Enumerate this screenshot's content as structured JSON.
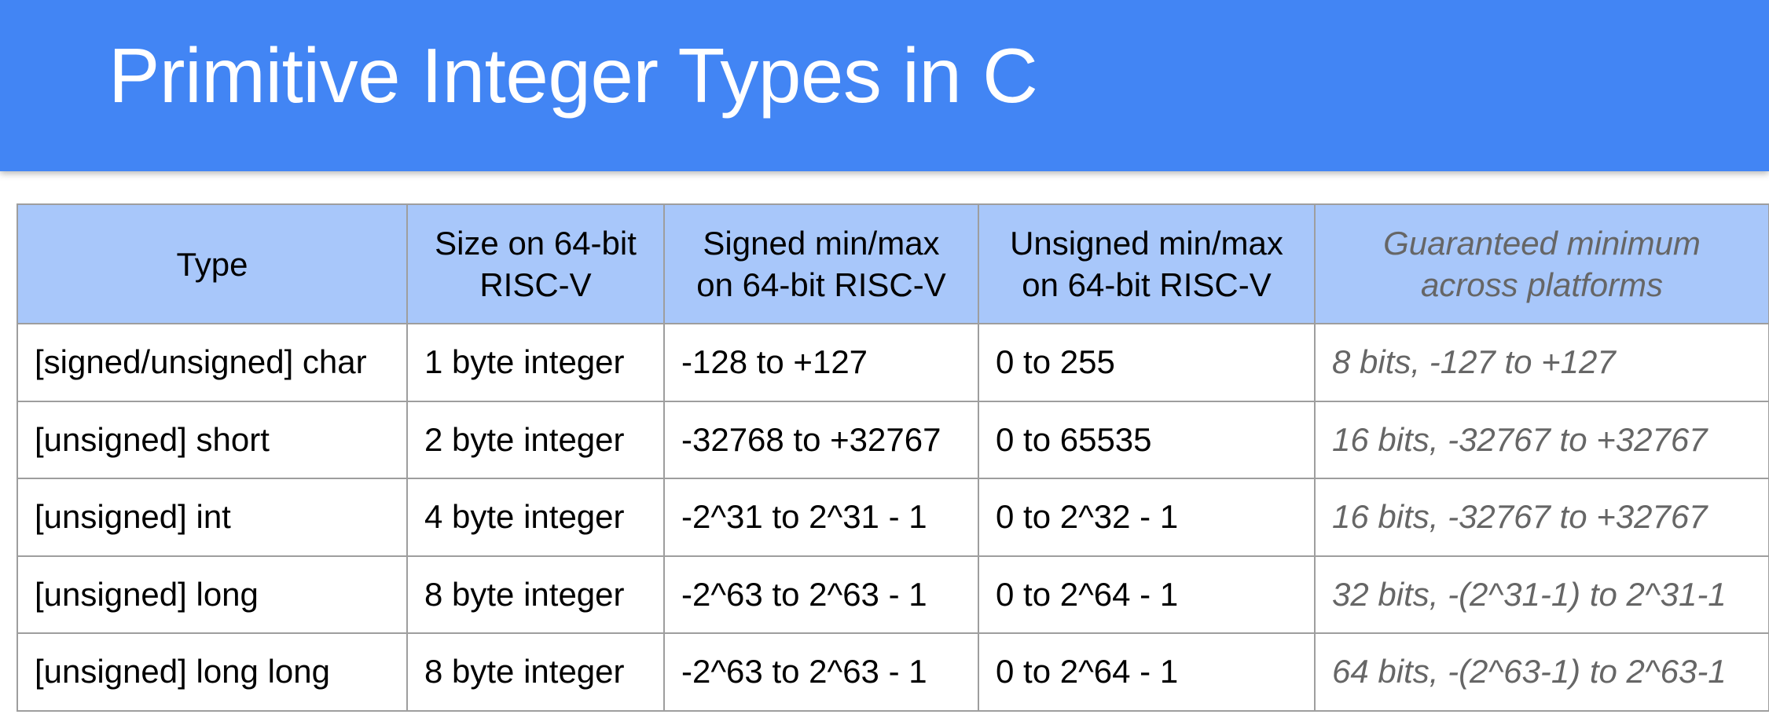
{
  "slide": {
    "title": "Primitive Integer Types in C"
  },
  "table": {
    "headers": [
      {
        "line1": "Type",
        "line2": ""
      },
      {
        "line1": "Size on 64-bit",
        "line2": "RISC-V"
      },
      {
        "line1": "Signed min/max",
        "line2": "on 64-bit RISC-V"
      },
      {
        "line1": "Unsigned min/max",
        "line2": "on 64-bit RISC-V"
      },
      {
        "line1": "Guaranteed minimum",
        "line2": "across platforms"
      }
    ],
    "rows": [
      {
        "type": "[signed/unsigned] char",
        "size": "1 byte integer",
        "signed": "-128 to +127",
        "unsigned": "0 to 255",
        "guarantee": "8 bits, -127 to +127"
      },
      {
        "type": "[unsigned] short",
        "size": "2 byte integer",
        "signed": "-32768 to +32767",
        "unsigned": "0 to 65535",
        "guarantee": "16 bits, -32767 to +32767"
      },
      {
        "type": "[unsigned] int",
        "size": "4 byte integer",
        "signed": "-2^31 to 2^31 - 1",
        "unsigned": "0 to 2^32 - 1",
        "guarantee": "16 bits, -32767 to +32767"
      },
      {
        "type": "[unsigned] long",
        "size": "8 byte integer",
        "signed": "-2^63 to 2^63 - 1",
        "unsigned": "0 to 2^64 - 1",
        "guarantee": "32 bits, -(2^31-1) to 2^31-1"
      },
      {
        "type": "[unsigned] long long",
        "size": "8 byte integer",
        "signed": "-2^63 to 2^63 - 1",
        "unsigned": "0 to 2^64 - 1",
        "guarantee": "64 bits, -(2^63-1) to 2^63-1"
      }
    ]
  },
  "colors": {
    "title_bar": "#4285f4",
    "header_fill": "#a8c7fa",
    "grid_line": "#9e9e9e",
    "guarantee_text": "#666666"
  }
}
